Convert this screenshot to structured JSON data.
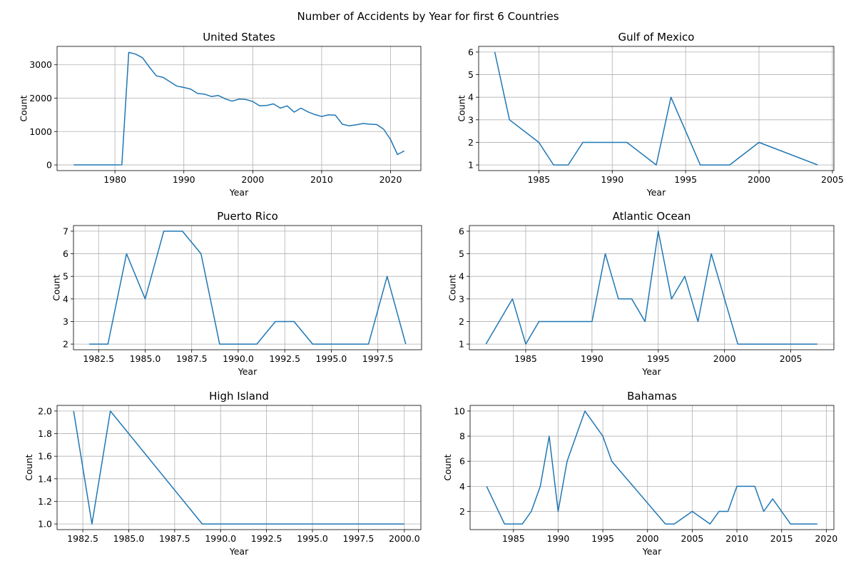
{
  "figure": {
    "suptitle": "Number of Accidents by Year for first 6 Countries"
  },
  "colors": {
    "line": "#1f77b4",
    "grid": "#b0b0b0",
    "axis": "#000000"
  },
  "chart_data": [
    {
      "type": "line",
      "title": "United States",
      "xlabel": "Year",
      "ylabel": "Count",
      "grid": true,
      "xlim": [
        1971.6,
        2024.4
      ],
      "ylim": [
        -170,
        3550
      ],
      "xticks": [
        1980,
        1990,
        2000,
        2010,
        2020
      ],
      "yticks": [
        0,
        1000,
        2000,
        3000
      ],
      "xtick_labels": [
        "1980",
        "1990",
        "2000",
        "2010",
        "2020"
      ],
      "ytick_labels": [
        "0",
        "1000",
        "2000",
        "3000"
      ],
      "series": [
        {
          "x": [
            1974,
            1975,
            1976,
            1977,
            1978,
            1979,
            1980,
            1981,
            1982,
            1983,
            1984,
            1985,
            1986,
            1987,
            1988,
            1989,
            1990,
            1991,
            1992,
            1993,
            1994,
            1995,
            1996,
            1997,
            1998,
            1999,
            2000,
            2001,
            2002,
            2003,
            2004,
            2005,
            2006,
            2007,
            2008,
            2009,
            2010,
            2011,
            2012,
            2013,
            2014,
            2015,
            2016,
            2017,
            2018,
            2019,
            2020,
            2021,
            2022
          ],
          "y": [
            1,
            1,
            1,
            1,
            1,
            1,
            1,
            3,
            3370,
            3320,
            3210,
            2930,
            2670,
            2620,
            2490,
            2360,
            2320,
            2270,
            2140,
            2120,
            2050,
            2080,
            1980,
            1910,
            1970,
            1960,
            1900,
            1770,
            1780,
            1830,
            1700,
            1770,
            1580,
            1700,
            1590,
            1510,
            1450,
            1500,
            1490,
            1220,
            1170,
            1200,
            1240,
            1220,
            1210,
            1070,
            760,
            310,
            420
          ]
        }
      ]
    },
    {
      "type": "line",
      "title": "Gulf of Mexico",
      "xlabel": "Year",
      "ylabel": "Count",
      "grid": true,
      "xlim": [
        1980.9,
        2005.1
      ],
      "ylim": [
        0.75,
        6.25
      ],
      "xticks": [
        1985,
        1990,
        1995,
        2000,
        2005
      ],
      "yticks": [
        1,
        2,
        3,
        4,
        5,
        6
      ],
      "xtick_labels": [
        "1985",
        "1990",
        "1995",
        "2000",
        "2005"
      ],
      "ytick_labels": [
        "1",
        "2",
        "3",
        "4",
        "5",
        "6"
      ],
      "series": [
        {
          "x": [
            1982,
            1983,
            1985,
            1986,
            1987,
            1988,
            1989,
            1990,
            1991,
            1993,
            1994,
            1996,
            1997,
            1998,
            2000,
            2004
          ],
          "y": [
            6,
            3,
            2,
            1,
            1,
            2,
            2,
            2,
            2,
            1,
            4,
            1,
            1,
            1,
            2,
            1
          ]
        }
      ]
    },
    {
      "type": "line",
      "title": "Puerto Rico",
      "xlabel": "Year",
      "ylabel": "Count",
      "grid": true,
      "xlim": [
        1981.15,
        1999.85
      ],
      "ylim": [
        1.75,
        7.25
      ],
      "xticks": [
        1982.5,
        1985.0,
        1987.5,
        1990.0,
        1992.5,
        1995.0,
        1997.5
      ],
      "yticks": [
        2,
        3,
        4,
        5,
        6,
        7
      ],
      "xtick_labels": [
        "1982.5",
        "1985.0",
        "1987.5",
        "1990.0",
        "1992.5",
        "1995.0",
        "1997.5"
      ],
      "ytick_labels": [
        "2",
        "3",
        "4",
        "5",
        "6",
        "7"
      ],
      "series": [
        {
          "x": [
            1982,
            1983,
            1984,
            1985,
            1986,
            1987,
            1988,
            1989,
            1990,
            1991,
            1992,
            1993,
            1994,
            1995,
            1996,
            1997,
            1998,
            1999
          ],
          "y": [
            2,
            2,
            6,
            4,
            7,
            7,
            6,
            2,
            2,
            2,
            3,
            3,
            2,
            2,
            2,
            2,
            5,
            2
          ]
        }
      ]
    },
    {
      "type": "line",
      "title": "Atlantic Ocean",
      "xlabel": "Year",
      "ylabel": "Count",
      "grid": true,
      "xlim": [
        1980.75,
        2008.25
      ],
      "ylim": [
        0.75,
        6.25
      ],
      "xticks": [
        1985,
        1990,
        1995,
        2000,
        2005
      ],
      "yticks": [
        1,
        2,
        3,
        4,
        5,
        6
      ],
      "xtick_labels": [
        "1985",
        "1990",
        "1995",
        "2000",
        "2005"
      ],
      "ytick_labels": [
        "1",
        "2",
        "3",
        "4",
        "5",
        "6"
      ],
      "series": [
        {
          "x": [
            1982,
            1984,
            1985,
            1986,
            1987,
            1988,
            1989,
            1990,
            1991,
            1992,
            1993,
            1994,
            1995,
            1996,
            1997,
            1998,
            1999,
            2001,
            2002,
            2003,
            2004,
            2005,
            2006,
            2007
          ],
          "y": [
            1,
            3,
            1,
            2,
            2,
            2,
            2,
            2,
            5,
            3,
            3,
            2,
            6,
            3,
            4,
            2,
            5,
            1,
            1,
            1,
            1,
            1,
            1,
            1
          ]
        }
      ]
    },
    {
      "type": "line",
      "title": "High Island",
      "xlabel": "Year",
      "ylabel": "Count",
      "grid": true,
      "xlim": [
        1981.1,
        2000.9
      ],
      "ylim": [
        0.95,
        2.05
      ],
      "xticks": [
        1982.5,
        1985.0,
        1987.5,
        1990.0,
        1992.5,
        1995.0,
        1997.5,
        2000.0
      ],
      "yticks": [
        1.0,
        1.2,
        1.4,
        1.6,
        1.8,
        2.0
      ],
      "xtick_labels": [
        "1982.5",
        "1985.0",
        "1987.5",
        "1990.0",
        "1992.5",
        "1995.0",
        "1997.5",
        "2000.0"
      ],
      "ytick_labels": [
        "1.0",
        "1.2",
        "1.4",
        "1.6",
        "1.8",
        "2.0"
      ],
      "series": [
        {
          "x": [
            1982,
            1983,
            1984,
            1989,
            1990,
            1991,
            1992,
            1993,
            1994,
            1995,
            1996,
            1997,
            1998,
            1999,
            2000
          ],
          "y": [
            2,
            1,
            2,
            1,
            1,
            1,
            1,
            1,
            1,
            1,
            1,
            1,
            1,
            1,
            1
          ]
        }
      ]
    },
    {
      "type": "line",
      "title": "Bahamas",
      "xlabel": "Year",
      "ylabel": "Count",
      "grid": true,
      "xlim": [
        1980.15,
        2020.85
      ],
      "ylim": [
        0.55,
        10.45
      ],
      "xticks": [
        1985,
        1990,
        1995,
        2000,
        2005,
        2010,
        2015,
        2020
      ],
      "yticks": [
        2,
        4,
        6,
        8,
        10
      ],
      "xtick_labels": [
        "1985",
        "1990",
        "1995",
        "2000",
        "2005",
        "2010",
        "2015",
        "2020"
      ],
      "ytick_labels": [
        "2",
        "4",
        "6",
        "8",
        "10"
      ],
      "series": [
        {
          "x": [
            1982,
            1984,
            1986,
            1987,
            1988,
            1989,
            1990,
            1991,
            1993,
            1995,
            1996,
            2002,
            2003,
            2005,
            2007,
            2008,
            2009,
            2010,
            2012,
            2013,
            2014,
            2016,
            2019
          ],
          "y": [
            4,
            1,
            1,
            2,
            4,
            8,
            2,
            6,
            10,
            8,
            6,
            1,
            1,
            2,
            1,
            2,
            2,
            4,
            4,
            2,
            3,
            1,
            1
          ]
        }
      ]
    }
  ]
}
